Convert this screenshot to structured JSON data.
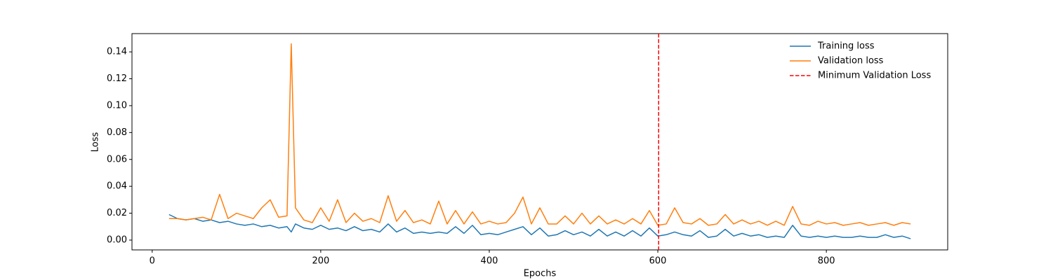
{
  "chart_data": {
    "type": "line",
    "xlabel": "Epochs",
    "ylabel": "Loss",
    "x": [
      20,
      30,
      40,
      50,
      60,
      70,
      80,
      90,
      100,
      110,
      120,
      130,
      140,
      150,
      160,
      165,
      170,
      180,
      190,
      200,
      210,
      220,
      230,
      240,
      250,
      260,
      270,
      280,
      290,
      300,
      310,
      320,
      330,
      340,
      350,
      360,
      370,
      380,
      390,
      400,
      410,
      420,
      430,
      440,
      450,
      460,
      470,
      480,
      490,
      500,
      510,
      520,
      530,
      540,
      550,
      560,
      570,
      580,
      590,
      600,
      610,
      620,
      630,
      640,
      650,
      660,
      670,
      680,
      690,
      700,
      710,
      720,
      730,
      740,
      750,
      760,
      770,
      780,
      790,
      800,
      810,
      820,
      830,
      840,
      850,
      860,
      870,
      880,
      890,
      900
    ],
    "series": [
      {
        "name": "Training loss",
        "color": "#1f77b4",
        "values": [
          0.019,
          0.016,
          0.015,
          0.016,
          0.014,
          0.015,
          0.013,
          0.014,
          0.012,
          0.011,
          0.012,
          0.01,
          0.011,
          0.009,
          0.01,
          0.006,
          0.012,
          0.009,
          0.008,
          0.011,
          0.008,
          0.009,
          0.007,
          0.01,
          0.007,
          0.008,
          0.006,
          0.012,
          0.006,
          0.009,
          0.005,
          0.006,
          0.005,
          0.006,
          0.005,
          0.01,
          0.005,
          0.011,
          0.004,
          0.005,
          0.004,
          0.006,
          0.008,
          0.01,
          0.004,
          0.009,
          0.003,
          0.004,
          0.007,
          0.004,
          0.006,
          0.003,
          0.008,
          0.003,
          0.006,
          0.003,
          0.007,
          0.003,
          0.009,
          0.003,
          0.004,
          0.006,
          0.004,
          0.003,
          0.007,
          0.002,
          0.003,
          0.008,
          0.003,
          0.005,
          0.003,
          0.004,
          0.002,
          0.003,
          0.002,
          0.011,
          0.003,
          0.002,
          0.003,
          0.002,
          0.003,
          0.002,
          0.002,
          0.003,
          0.002,
          0.002,
          0.004,
          0.002,
          0.003,
          0.001
        ]
      },
      {
        "name": "Validation loss",
        "color": "#ff7f0e",
        "values": [
          0.016,
          0.016,
          0.015,
          0.016,
          0.017,
          0.015,
          0.034,
          0.016,
          0.02,
          0.018,
          0.016,
          0.024,
          0.03,
          0.017,
          0.018,
          0.146,
          0.024,
          0.015,
          0.013,
          0.024,
          0.014,
          0.03,
          0.013,
          0.02,
          0.014,
          0.016,
          0.013,
          0.033,
          0.014,
          0.022,
          0.013,
          0.015,
          0.012,
          0.029,
          0.012,
          0.022,
          0.012,
          0.021,
          0.012,
          0.014,
          0.012,
          0.013,
          0.02,
          0.032,
          0.012,
          0.024,
          0.012,
          0.012,
          0.018,
          0.012,
          0.02,
          0.012,
          0.018,
          0.012,
          0.015,
          0.012,
          0.016,
          0.012,
          0.022,
          0.011,
          0.012,
          0.024,
          0.013,
          0.012,
          0.016,
          0.011,
          0.012,
          0.019,
          0.012,
          0.015,
          0.012,
          0.014,
          0.011,
          0.014,
          0.011,
          0.025,
          0.012,
          0.011,
          0.014,
          0.012,
          0.013,
          0.011,
          0.012,
          0.013,
          0.011,
          0.012,
          0.013,
          0.011,
          0.013,
          0.012
        ]
      }
    ],
    "vlines": [
      {
        "name": "Minimum Validation Loss",
        "x": 601,
        "color": "#ff0000",
        "style": "dashed"
      }
    ],
    "xlim": [
      -24,
      944
    ],
    "ylim": [
      -0.0073,
      0.1536
    ],
    "xticks": [
      0,
      200,
      400,
      600,
      800
    ],
    "yticks": [
      {
        "value": 0,
        "label": "0.00"
      },
      {
        "value": 0.02,
        "label": "0.02"
      },
      {
        "value": 0.04,
        "label": "0.04"
      },
      {
        "value": 0.06,
        "label": "0.06"
      },
      {
        "value": 0.08,
        "label": "0.08"
      },
      {
        "value": 0.1,
        "label": "0.10"
      },
      {
        "value": 0.12,
        "label": "0.12"
      },
      {
        "value": 0.14,
        "label": "0.14"
      }
    ],
    "grid": false,
    "legend": "upper right"
  }
}
